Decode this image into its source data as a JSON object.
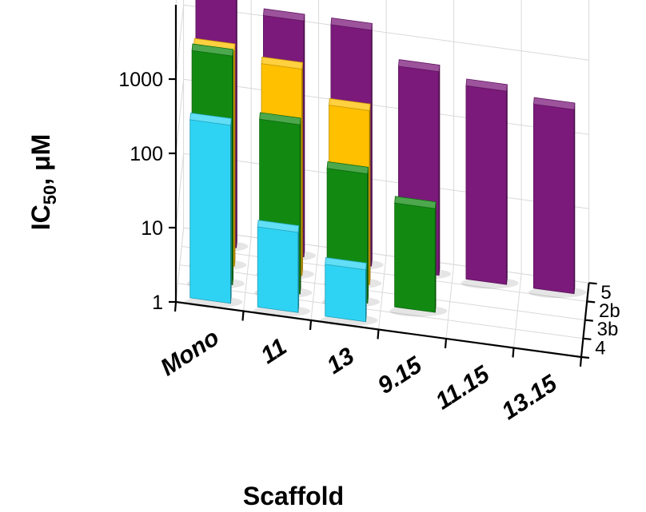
{
  "chart_data": {
    "type": "bar",
    "subtype": "3d-column",
    "categories": [
      "Mono",
      "11",
      "13",
      "9.15",
      "11.15",
      "13.15"
    ],
    "depth_categories": [
      "5",
      "2b",
      "3b",
      "4"
    ],
    "y_scale": "log",
    "ylim": [
      1,
      10000
    ],
    "yticks": [
      "1",
      "10",
      "100",
      "1000"
    ],
    "y_label_main": "IC",
    "y_label_sub": "50",
    "y_label_rest": ", μM",
    "xlabel": "Scaffold",
    "grid": true,
    "legend": "none",
    "series": [
      {
        "name": "5",
        "color": "#7b1a7b",
        "values": [
          4000,
          1500,
          1500,
          550,
          400,
          300
        ]
      },
      {
        "name": "2b",
        "color": "#ffc000",
        "values": [
          800,
          600,
          220,
          null,
          null,
          null
        ]
      },
      {
        "name": "3b",
        "color": "#128a12",
        "values": [
          1200,
          190,
          55,
          25,
          null,
          null
        ]
      },
      {
        "name": "4",
        "color": "#2ed3f3",
        "values": [
          250,
          12,
          5,
          null,
          null,
          null
        ]
      }
    ]
  }
}
